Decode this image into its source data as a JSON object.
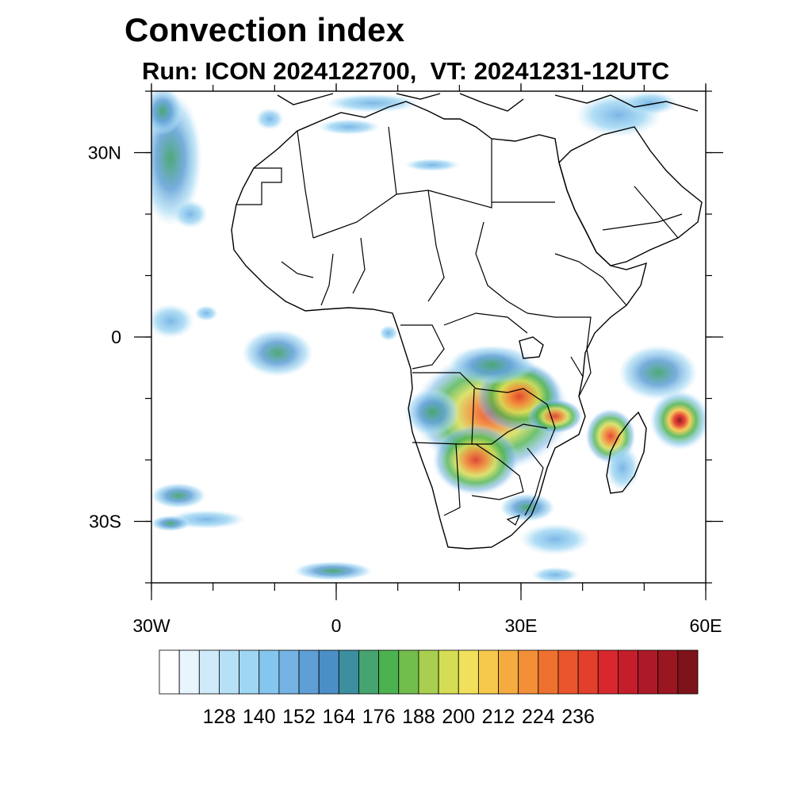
{
  "header": {
    "title": "Convection index",
    "subtitle": "Run: ICON 2024122700,  VT: 20241231-12UTC"
  },
  "map": {
    "region": "Africa",
    "lon_range": [
      -30,
      60
    ],
    "lat_range": [
      -40,
      40
    ],
    "x_ticks": [
      {
        "lon": -30,
        "label": "30W"
      },
      {
        "lon": 0,
        "label": "0"
      },
      {
        "lon": 30,
        "label": "30E"
      },
      {
        "lon": 60,
        "label": "60E"
      }
    ],
    "y_ticks": [
      {
        "lat": 30,
        "label": "30N"
      },
      {
        "lat": 0,
        "label": "0"
      },
      {
        "lat": -30,
        "label": "30S"
      }
    ],
    "minor_tick_step_deg": 10,
    "field_regions": [
      {
        "name": "southern-africa-convection",
        "lon": 25.5,
        "lat": -12.5,
        "max_level": 210
      },
      {
        "name": "mozambique-channel-system",
        "lon": 48,
        "lat": -15,
        "max_level": 200
      },
      {
        "name": "indian-ocean-cyclone",
        "lon": 57,
        "lat": -13.5,
        "max_level": 232
      },
      {
        "name": "tropical-atlantic-cluster",
        "lon": -10,
        "lat": -2,
        "max_level": 158
      },
      {
        "name": "north-atlantic-band",
        "lon": -27,
        "lat": 28,
        "max_level": 164
      }
    ]
  },
  "colorbar": {
    "ticks": [
      "128",
      "140",
      "152",
      "164",
      "176",
      "188",
      "200",
      "212",
      "224",
      "236"
    ],
    "colors": [
      "#ffffff",
      "#e8f5fc",
      "#cfeaf8",
      "#b6e0f6",
      "#9fd6f3",
      "#85c6ee",
      "#74b3e4",
      "#5e9fd6",
      "#4c8fc6",
      "#3d8fa0",
      "#45a46f",
      "#4cb24f",
      "#72bd4d",
      "#a8cf50",
      "#d5dd55",
      "#f0e05c",
      "#f6c94c",
      "#f5ab40",
      "#f28f37",
      "#ee7130",
      "#e9552d",
      "#e2402d",
      "#d8282d",
      "#c41e2b",
      "#ad1a27",
      "#9a1620",
      "#7f131b"
    ]
  }
}
